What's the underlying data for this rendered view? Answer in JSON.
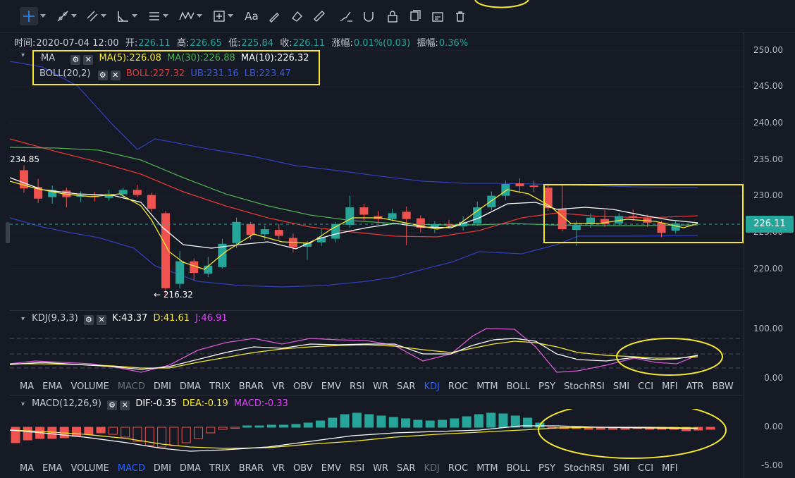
{
  "toolbar": {
    "items": [
      "crosshair-icon",
      "trendline-icon",
      "multi-line-icon",
      "angle-icon",
      "parallel-icon",
      "wave-icon",
      "measure-icon",
      "text-icon",
      "pen-icon",
      "eraser-icon",
      "ruler-icon",
      "brush-icon",
      "lock-icon",
      "copy-icon",
      "snapshot-icon",
      "trash-icon"
    ],
    "text_tool": "Aa"
  },
  "ohlc": {
    "time_label": "时间:",
    "time": "2020-07-04 12:00",
    "open_label": "开:",
    "open": "226.11",
    "high_label": "高:",
    "high": "226.65",
    "low_label": "低:",
    "low": "225.84",
    "close_label": "收:",
    "close": "226.11",
    "change_label": "涨幅:",
    "change": "0.01%(0.03)",
    "amp_label": "振幅:",
    "amp": "0.36%"
  },
  "legend": {
    "ma_name": "MA",
    "ma5": "MA(5):226.08",
    "ma30": "MA(30):226.88",
    "ma10": "MA(10):226.32",
    "boll_name": "BOLL(20,2)",
    "boll": "BOLL:227.32",
    "ub": "UB:231.16",
    "lb": "LB:223.47"
  },
  "price_axis": [
    "250.00",
    "245.00",
    "240.00",
    "235.00",
    "230.00",
    "225.00",
    "220.00"
  ],
  "current_price": "226.11",
  "annotations": {
    "high_marker": "234.85",
    "low_marker": "← 216.32"
  },
  "kdj": {
    "name": "KDJ(9,3,3)",
    "k": "K:43.37",
    "d": "D:41.61",
    "j": "J:46.91",
    "axis": [
      "100.00",
      "0.00"
    ]
  },
  "kdj_tabs": [
    "MA",
    "EMA",
    "VOLUME",
    "MACD",
    "DMI",
    "DMA",
    "TRIX",
    "BRAR",
    "VR",
    "OBV",
    "EMV",
    "RSI",
    "WR",
    "SAR",
    "KDJ",
    "ROC",
    "MTM",
    "BOLL",
    "PSY",
    "StochRSI",
    "SMI",
    "CCI",
    "MFI",
    "ATR",
    "BBW"
  ],
  "macd": {
    "name": "MACD(12,26,9)",
    "dif": "DIF:-0.35",
    "dea": "DEA:-0.19",
    "macd": "MACD:-0.33",
    "axis": [
      "0.00",
      "-5.00"
    ]
  },
  "macd_tabs": [
    "MA",
    "EMA",
    "VOLUME",
    "MACD",
    "DMI",
    "DMA",
    "TRIX",
    "BRAR",
    "VR",
    "OBV",
    "EMV",
    "RSI",
    "WR",
    "SAR",
    "KDJ",
    "ROC",
    "MTM",
    "BOLL",
    "PSY",
    "StochRSI",
    "SMI",
    "CCI",
    "MFI"
  ],
  "colors": {
    "up": "#26a69a",
    "down": "#ef5350",
    "ma5": "#f5e82e",
    "ma10": "#ffffff",
    "ma30": "#4caf50",
    "boll": "#e53935",
    "band": "#2e3fb8",
    "highlight": "#f5e82e",
    "active_tab": "#2962ff"
  }
}
